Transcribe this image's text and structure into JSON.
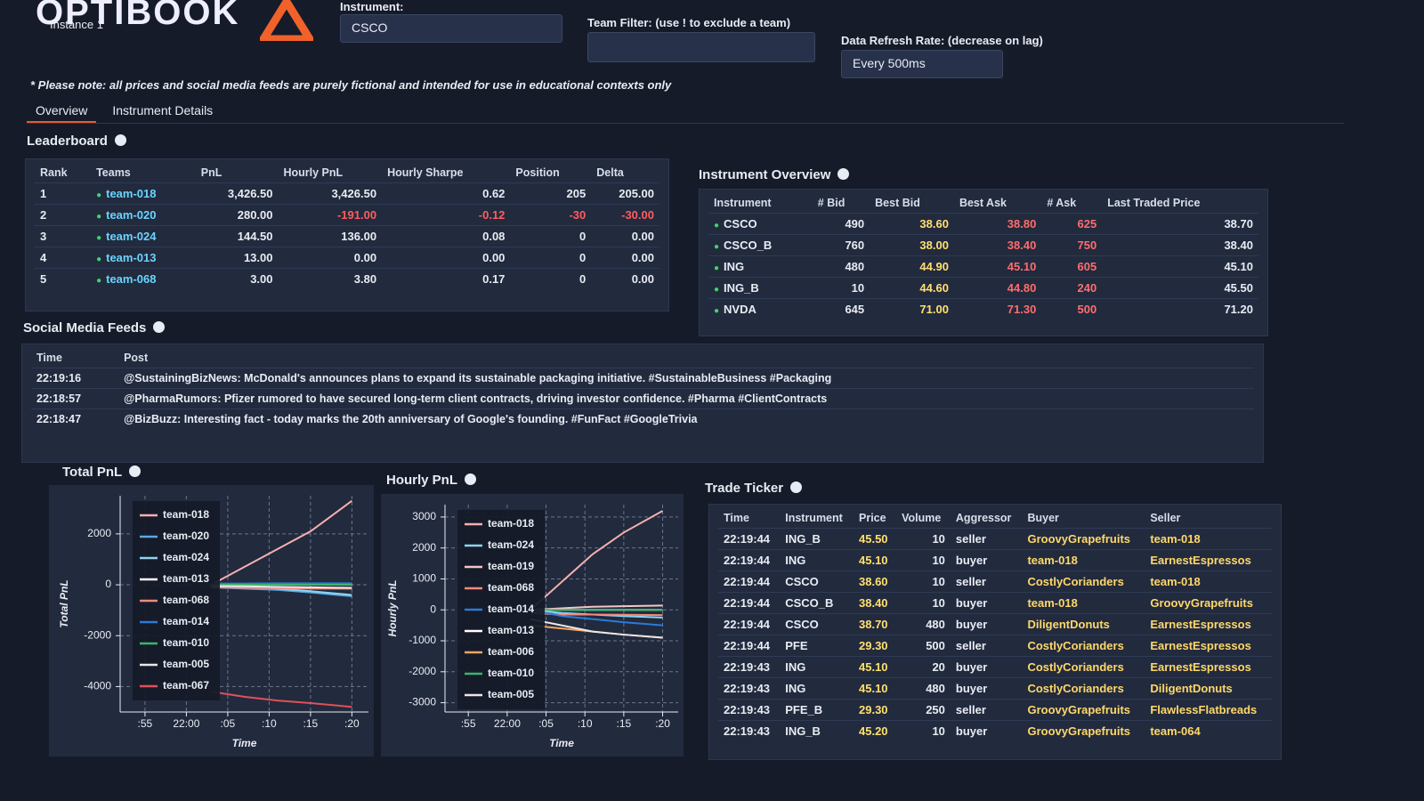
{
  "header": {
    "title": "OPTIBOOK",
    "instance": "Instance 1"
  },
  "controls": {
    "instrument_label": "Instrument:",
    "instrument_value": "CSCO",
    "team_filter_label": "Team Filter: (use ! to exclude a team)",
    "refresh_label": "Data Refresh Rate: (decrease on lag)",
    "refresh_value": "Every 500ms"
  },
  "note": "* Please note: all prices and social media feeds are purely fictional and intended for use in educational contexts only",
  "tabs": [
    "Overview",
    "Instrument Details"
  ],
  "leaderboard": {
    "title": "Leaderboard",
    "columns": [
      "Rank",
      "Teams",
      "PnL",
      "Hourly PnL",
      "Hourly Sharpe",
      "Position",
      "Delta"
    ],
    "rows": [
      [
        "1",
        "team-018",
        "3,426.50",
        "3,426.50",
        "0.62",
        "205",
        "205.00"
      ],
      [
        "2",
        "team-020",
        "280.00",
        "-191.00",
        "-0.12",
        "-30",
        "-30.00"
      ],
      [
        "3",
        "team-024",
        "144.50",
        "136.00",
        "0.08",
        "0",
        "0.00"
      ],
      [
        "4",
        "team-013",
        "13.00",
        "0.00",
        "0.00",
        "0",
        "0.00"
      ],
      [
        "5",
        "team-068",
        "3.00",
        "3.80",
        "0.17",
        "0",
        "0.00"
      ]
    ]
  },
  "instrument_overview": {
    "title": "Instrument Overview",
    "columns": [
      "Instrument",
      "# Bid",
      "Best Bid",
      "Best Ask",
      "# Ask",
      "Last Traded Price"
    ],
    "rows": [
      [
        "CSCO",
        "490",
        "38.60",
        "38.80",
        "625",
        "38.70"
      ],
      [
        "CSCO_B",
        "760",
        "38.00",
        "38.40",
        "750",
        "38.40"
      ],
      [
        "ING",
        "480",
        "44.90",
        "45.10",
        "605",
        "45.10"
      ],
      [
        "ING_B",
        "10",
        "44.60",
        "44.80",
        "240",
        "45.50"
      ],
      [
        "NVDA",
        "645",
        "71.00",
        "71.30",
        "500",
        "71.20"
      ]
    ]
  },
  "social_media_feeds": {
    "title": "Social Media Feeds",
    "columns": [
      "Time",
      "Post"
    ],
    "rows": [
      [
        "22:19:16",
        "@SustainingBizNews: McDonald's announces plans to expand its sustainable packaging initiative. #SustainableBusiness #Packaging"
      ],
      [
        "22:18:57",
        "@PharmaRumors: Pfizer rumored to have secured long-term client contracts, driving investor confidence. #Pharma #ClientContracts"
      ],
      [
        "22:18:47",
        "@BizBuzz: Interesting fact - today marks the 20th anniversary of Google's founding. #FunFact #GoogleTrivia"
      ]
    ]
  },
  "trade_ticker": {
    "title": "Trade Ticker",
    "columns": [
      "Time",
      "Instrument",
      "Price",
      "Volume",
      "Aggressor",
      "Buyer",
      "Seller"
    ],
    "rows": [
      [
        "22:19:44",
        "ING_B",
        "45.50",
        "10",
        "seller",
        "GroovyGrapefruits",
        "team-018"
      ],
      [
        "22:19:44",
        "ING",
        "45.10",
        "10",
        "buyer",
        "team-018",
        "EarnestEspressos"
      ],
      [
        "22:19:44",
        "CSCO",
        "38.60",
        "10",
        "seller",
        "CostlyCorianders",
        "team-018"
      ],
      [
        "22:19:44",
        "CSCO_B",
        "38.40",
        "10",
        "buyer",
        "team-018",
        "GroovyGrapefruits"
      ],
      [
        "22:19:44",
        "CSCO",
        "38.70",
        "480",
        "buyer",
        "DiligentDonuts",
        "EarnestEspressos"
      ],
      [
        "22:19:44",
        "PFE",
        "29.30",
        "500",
        "seller",
        "CostlyCorianders",
        "EarnestEspressos"
      ],
      [
        "22:19:43",
        "ING",
        "45.10",
        "20",
        "buyer",
        "CostlyCorianders",
        "EarnestEspressos"
      ],
      [
        "22:19:43",
        "ING",
        "45.10",
        "480",
        "buyer",
        "CostlyCorianders",
        "DiligentDonuts"
      ],
      [
        "22:19:43",
        "PFE_B",
        "29.30",
        "250",
        "seller",
        "GroovyGrapefruits",
        "FlawlessFlatbreads"
      ],
      [
        "22:19:43",
        "ING_B",
        "45.20",
        "10",
        "buyer",
        "GroovyGrapefruits",
        "team-064"
      ]
    ]
  },
  "chart_data": [
    {
      "type": "line",
      "title": "Total PnL",
      "x_label": "Time",
      "y_label": "Total PnL",
      "x": [
        "22:03",
        "22:07",
        "22:11",
        "22:15",
        "22:20"
      ],
      "xlim": [
        "21:52",
        "22:22"
      ],
      "xticks": [
        {
          "value": "21:55",
          "label": ":55"
        },
        "22:00",
        {
          "value": "22:05",
          "label": ":05"
        },
        {
          "value": "22:10",
          "label": ":10"
        },
        {
          "value": "22:15",
          "label": ":15"
        },
        {
          "value": "22:20",
          "label": ":20"
        }
      ],
      "ylim": [
        -5000,
        3500
      ],
      "yticks": [
        -4000,
        -2000,
        0,
        2000
      ],
      "grid": true,
      "series": [
        {
          "name": "team-018",
          "color": "#f7b0b0",
          "values": [
            0,
            700,
            1400,
            2100,
            3300
          ]
        },
        {
          "name": "team-020",
          "color": "#5aa9e6",
          "values": [
            -100,
            -150,
            -200,
            -300,
            -450
          ]
        },
        {
          "name": "team-024",
          "color": "#8fd3f0",
          "values": [
            0,
            -50,
            -150,
            -250,
            -400
          ]
        },
        {
          "name": "team-013",
          "color": "#ffffff",
          "values": [
            0,
            0,
            0,
            0,
            0
          ]
        },
        {
          "name": "team-068",
          "color": "#f08a7a",
          "values": [
            -100,
            -120,
            -130,
            -150,
            -150
          ]
        },
        {
          "name": "team-014",
          "color": "#2b7bd6",
          "values": [
            50,
            50,
            60,
            60,
            60
          ]
        },
        {
          "name": "team-010",
          "color": "#3cb371",
          "values": [
            0,
            0,
            0,
            0,
            0
          ]
        },
        {
          "name": "team-005",
          "color": "#e8e8e8",
          "values": [
            -50,
            -60,
            -80,
            -100,
            -120
          ]
        },
        {
          "name": "team-067",
          "color": "#e0505a",
          "values": [
            -4200,
            -4400,
            -4550,
            -4650,
            -4800
          ]
        }
      ]
    },
    {
      "type": "line",
      "title": "Hourly PnL",
      "x_label": "Time",
      "y_label": "Hourly PnL",
      "x": [
        "22:03",
        "22:07",
        "22:11",
        "22:15",
        "22:20"
      ],
      "xlim": [
        "21:52",
        "22:22"
      ],
      "xticks": [
        {
          "value": "21:55",
          "label": ":55"
        },
        "22:00",
        {
          "value": "22:05",
          "label": ":05"
        },
        {
          "value": "22:10",
          "label": ":10"
        },
        {
          "value": "22:15",
          "label": ":15"
        },
        {
          "value": "22:20",
          "label": ":20"
        }
      ],
      "ylim": [
        -3300,
        3400
      ],
      "yticks": [
        -3000,
        -2000,
        -1000,
        0,
        1000,
        2000,
        3000
      ],
      "grid": true,
      "series": [
        {
          "name": "team-018",
          "color": "#f7b0b0",
          "values": [
            0,
            900,
            1800,
            2500,
            3200
          ]
        },
        {
          "name": "team-024",
          "color": "#8fd3f0",
          "values": [
            0,
            -100,
            -150,
            -200,
            -250
          ]
        },
        {
          "name": "team-019",
          "color": "#f4c6c6",
          "values": [
            0,
            50,
            100,
            120,
            140
          ]
        },
        {
          "name": "team-068",
          "color": "#f08a7a",
          "values": [
            -100,
            -150,
            -150,
            -160,
            -170
          ]
        },
        {
          "name": "team-014",
          "color": "#2b7bd6",
          "values": [
            0,
            -200,
            -300,
            -400,
            -500
          ]
        },
        {
          "name": "team-013",
          "color": "#ffffff",
          "values": [
            0,
            0,
            0,
            0,
            0
          ]
        },
        {
          "name": "team-006",
          "color": "#f4a460",
          "values": [
            -500,
            -600,
            -700,
            -800,
            -900
          ]
        },
        {
          "name": "team-010",
          "color": "#3cb371",
          "values": [
            0,
            0,
            0,
            0,
            0
          ]
        },
        {
          "name": "team-005",
          "color": "#e8e8e8",
          "values": [
            -300,
            -500,
            -700,
            -800,
            -900
          ]
        }
      ]
    }
  ]
}
